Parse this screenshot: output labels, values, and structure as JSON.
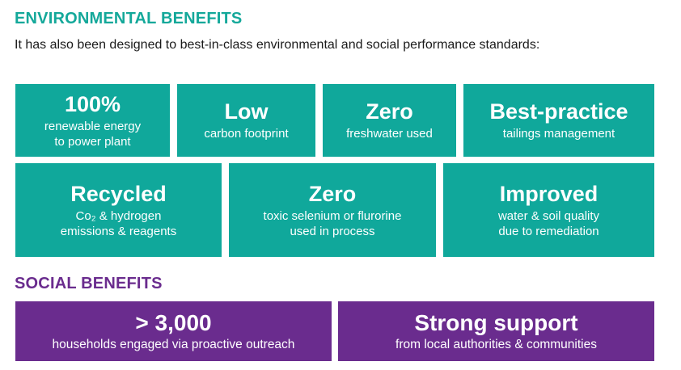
{
  "environmental": {
    "heading": "ENVIRONMENTAL BENEFITS",
    "intro": "It has also been designed to best-in-class environmental and social performance standards:",
    "tiles": [
      {
        "big": "100%",
        "line1": "renewable energy",
        "line2": "to power plant"
      },
      {
        "big": "Low",
        "line1": "carbon footprint",
        "line2": ""
      },
      {
        "big": "Zero",
        "line1": "freshwater used",
        "line2": ""
      },
      {
        "big": "Best-practice",
        "line1": "tailings management",
        "line2": ""
      },
      {
        "big": "Recycled",
        "line1": "Co₂ & hydrogen",
        "line2": "emissions & reagents"
      },
      {
        "big": "Zero",
        "line1": "toxic selenium or flurorine",
        "line2": "used in process"
      },
      {
        "big": "Improved",
        "line1": "water & soil quality",
        "line2": "due to remediation"
      }
    ]
  },
  "social": {
    "heading": "SOCIAL BENEFITS",
    "tiles": [
      {
        "big": "> 3,000",
        "line1": "households engaged via proactive outreach"
      },
      {
        "big": "Strong support",
        "line1": "from local authorities & communities"
      }
    ]
  },
  "colors": {
    "teal": "#10a89b",
    "purple": "#6a2c8e",
    "env_heading": "#14a89a"
  }
}
